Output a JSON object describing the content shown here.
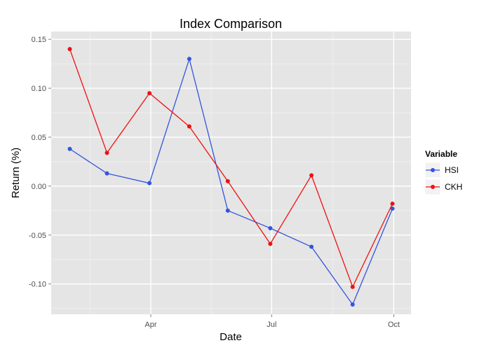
{
  "chart_data": {
    "type": "line",
    "title": "Index Comparison",
    "xlabel": "Date",
    "ylabel": "Return (%)",
    "x": [
      "2015-01-30",
      "2015-02-27",
      "2015-03-31",
      "2015-04-30",
      "2015-05-29",
      "2015-06-30",
      "2015-07-31",
      "2015-08-31",
      "2015-09-30"
    ],
    "x_ticks": [
      {
        "date": "2015-04-01",
        "label": "Apr"
      },
      {
        "date": "2015-07-01",
        "label": "Jul"
      },
      {
        "date": "2015-10-01",
        "label": "Oct"
      }
    ],
    "y_ticks": [
      {
        "value": 0.15,
        "label": "0.15"
      },
      {
        "value": 0.1,
        "label": "0.10"
      },
      {
        "value": 0.05,
        "label": "0.05"
      },
      {
        "value": 0.0,
        "label": "0.00"
      },
      {
        "value": -0.05,
        "label": "-0.05"
      },
      {
        "value": -0.1,
        "label": "-0.10"
      }
    ],
    "xlim": [
      "2015-01-16",
      "2015-10-14"
    ],
    "ylim": [
      -0.131,
      0.158
    ],
    "grid": true,
    "legend": {
      "title": "Variable",
      "position": "right"
    },
    "series": [
      {
        "name": "HSI",
        "color": "#3355dd",
        "values": [
          0.038,
          0.013,
          0.003,
          0.13,
          -0.025,
          -0.043,
          -0.062,
          -0.121,
          -0.023
        ]
      },
      {
        "name": "CKH",
        "color": "#ee1111",
        "values": [
          0.14,
          0.034,
          0.095,
          0.061,
          0.005,
          -0.059,
          0.011,
          -0.103,
          -0.018
        ]
      }
    ]
  }
}
